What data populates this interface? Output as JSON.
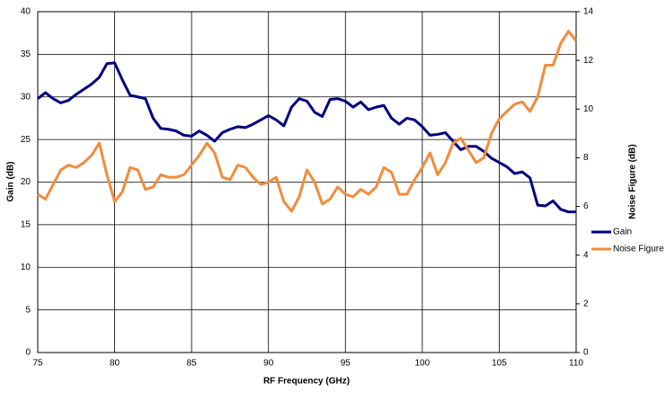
{
  "chart_data": {
    "type": "line",
    "x_label": "RF Frequency (GHz)",
    "y_label": "Gain (dB)",
    "y2_label": "Noise Figure (dB)",
    "x": [
      75,
      75.5,
      76,
      76.5,
      77,
      77.5,
      78,
      78.5,
      79,
      79.5,
      80,
      80.5,
      81,
      81.5,
      82,
      82.5,
      83,
      83.5,
      84,
      84.5,
      85,
      85.5,
      86,
      86.5,
      87,
      87.5,
      88,
      88.5,
      89,
      89.5,
      90,
      90.5,
      91,
      91.5,
      92,
      92.5,
      93,
      93.5,
      94,
      94.5,
      95,
      95.5,
      96,
      96.5,
      97,
      97.5,
      98,
      98.5,
      99,
      99.5,
      100,
      100.5,
      101,
      101.5,
      102,
      102.5,
      103,
      103.5,
      104,
      104.5,
      105,
      105.5,
      106,
      106.5,
      107,
      107.5,
      108,
      108.5,
      109,
      109.5,
      110
    ],
    "series": [
      {
        "name": "Gain",
        "color": "#000080",
        "values": [
          29.8,
          30.5,
          29.8,
          29.3,
          29.6,
          30.3,
          30.9,
          31.5,
          32.3,
          33.9,
          34.0,
          32.0,
          30.2,
          30.0,
          29.8,
          27.5,
          26.3,
          26.2,
          26.0,
          25.5,
          25.4,
          26.0,
          25.5,
          24.8,
          25.8,
          26.2,
          26.5,
          26.4,
          26.8,
          27.3,
          27.8,
          27.3,
          26.6,
          28.8,
          29.8,
          29.5,
          28.2,
          27.7,
          29.7,
          29.8,
          29.5,
          28.8,
          29.4,
          28.5,
          28.8,
          29.0,
          27.5,
          26.8,
          27.5,
          27.3,
          26.5,
          25.5,
          25.6,
          25.8,
          24.8,
          23.8,
          24.2,
          24.2,
          23.6,
          22.8,
          22.3,
          21.8,
          21.0,
          21.2,
          20.5,
          17.3,
          17.2,
          17.8,
          16.8,
          16.5,
          16.5
        ]
      },
      {
        "name": "Noise Figure",
        "color": "#f08c3c",
        "axis": "y2",
        "values": [
          6.5,
          6.3,
          6.9,
          7.5,
          7.7,
          7.6,
          7.8,
          8.1,
          8.6,
          7.3,
          6.2,
          6.6,
          7.6,
          7.5,
          6.7,
          6.8,
          7.3,
          7.2,
          7.2,
          7.3,
          7.7,
          8.1,
          8.6,
          8.2,
          7.2,
          7.1,
          7.7,
          7.6,
          7.2,
          6.9,
          7.0,
          7.2,
          6.2,
          5.8,
          6.4,
          7.5,
          7.0,
          6.1,
          6.3,
          6.8,
          6.5,
          6.4,
          6.7,
          6.5,
          6.8,
          7.6,
          7.4,
          6.5,
          6.5,
          7.1,
          7.6,
          8.2,
          7.3,
          7.8,
          8.6,
          8.8,
          8.3,
          7.8,
          8.0,
          9.0,
          9.6,
          9.9,
          10.2,
          10.3,
          9.9,
          10.5,
          11.8,
          11.8,
          12.7,
          13.2,
          12.8
        ]
      }
    ],
    "xlim": [
      75,
      110
    ],
    "xticks": [
      75,
      80,
      85,
      90,
      95,
      100,
      105,
      110
    ],
    "ylim": [
      0,
      40
    ],
    "yticks": [
      0,
      5,
      10,
      15,
      20,
      25,
      30,
      35,
      40
    ],
    "y2lim": [
      0,
      14
    ],
    "y2ticks": [
      0,
      2,
      4,
      6,
      8,
      10,
      12,
      14
    ],
    "grid": true,
    "legend": "right"
  }
}
